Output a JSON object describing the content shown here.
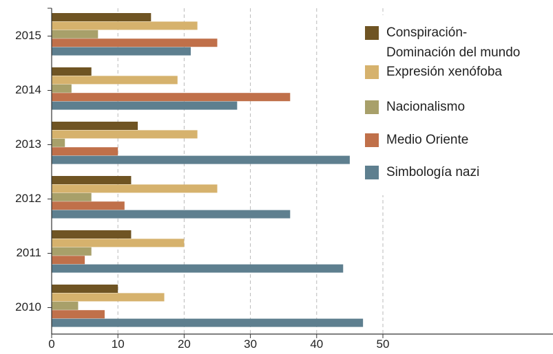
{
  "chart_data": {
    "type": "bar",
    "orientation": "horizontal",
    "title": "",
    "xlabel": "",
    "ylabel": "",
    "categories": [
      "2015",
      "2014",
      "2013",
      "2012",
      "2011",
      "2010"
    ],
    "xlim": [
      0,
      50
    ],
    "xticks": [
      0,
      10,
      20,
      30,
      40,
      50
    ],
    "grid": "vertical dashed",
    "legend_position": "right",
    "series": [
      {
        "name": "Conspiración-\nDominación del mundo",
        "legend_lines": [
          "Conspiración-",
          "Dominación del mundo"
        ],
        "color": "#6f5423",
        "values": [
          15,
          6,
          13,
          12,
          12,
          10
        ]
      },
      {
        "name": "Expresión xenófoba",
        "legend_lines": [
          "Expresión xenófoba"
        ],
        "color": "#d6b26d",
        "values": [
          22,
          19,
          22,
          25,
          20,
          17
        ]
      },
      {
        "name": "Nacionalismo",
        "legend_lines": [
          "Nacionalismo"
        ],
        "color": "#a8a06a",
        "values": [
          7,
          3,
          2,
          6,
          6,
          4
        ]
      },
      {
        "name": "Medio Oriente",
        "legend_lines": [
          "Medio Oriente"
        ],
        "color": "#c0704a",
        "values": [
          25,
          36,
          10,
          11,
          5,
          8
        ]
      },
      {
        "name": "Simbología nazi",
        "legend_lines": [
          "Simbología nazi"
        ],
        "color": "#5e7f8f",
        "values": [
          21,
          28,
          45,
          36,
          44,
          47
        ]
      }
    ]
  }
}
